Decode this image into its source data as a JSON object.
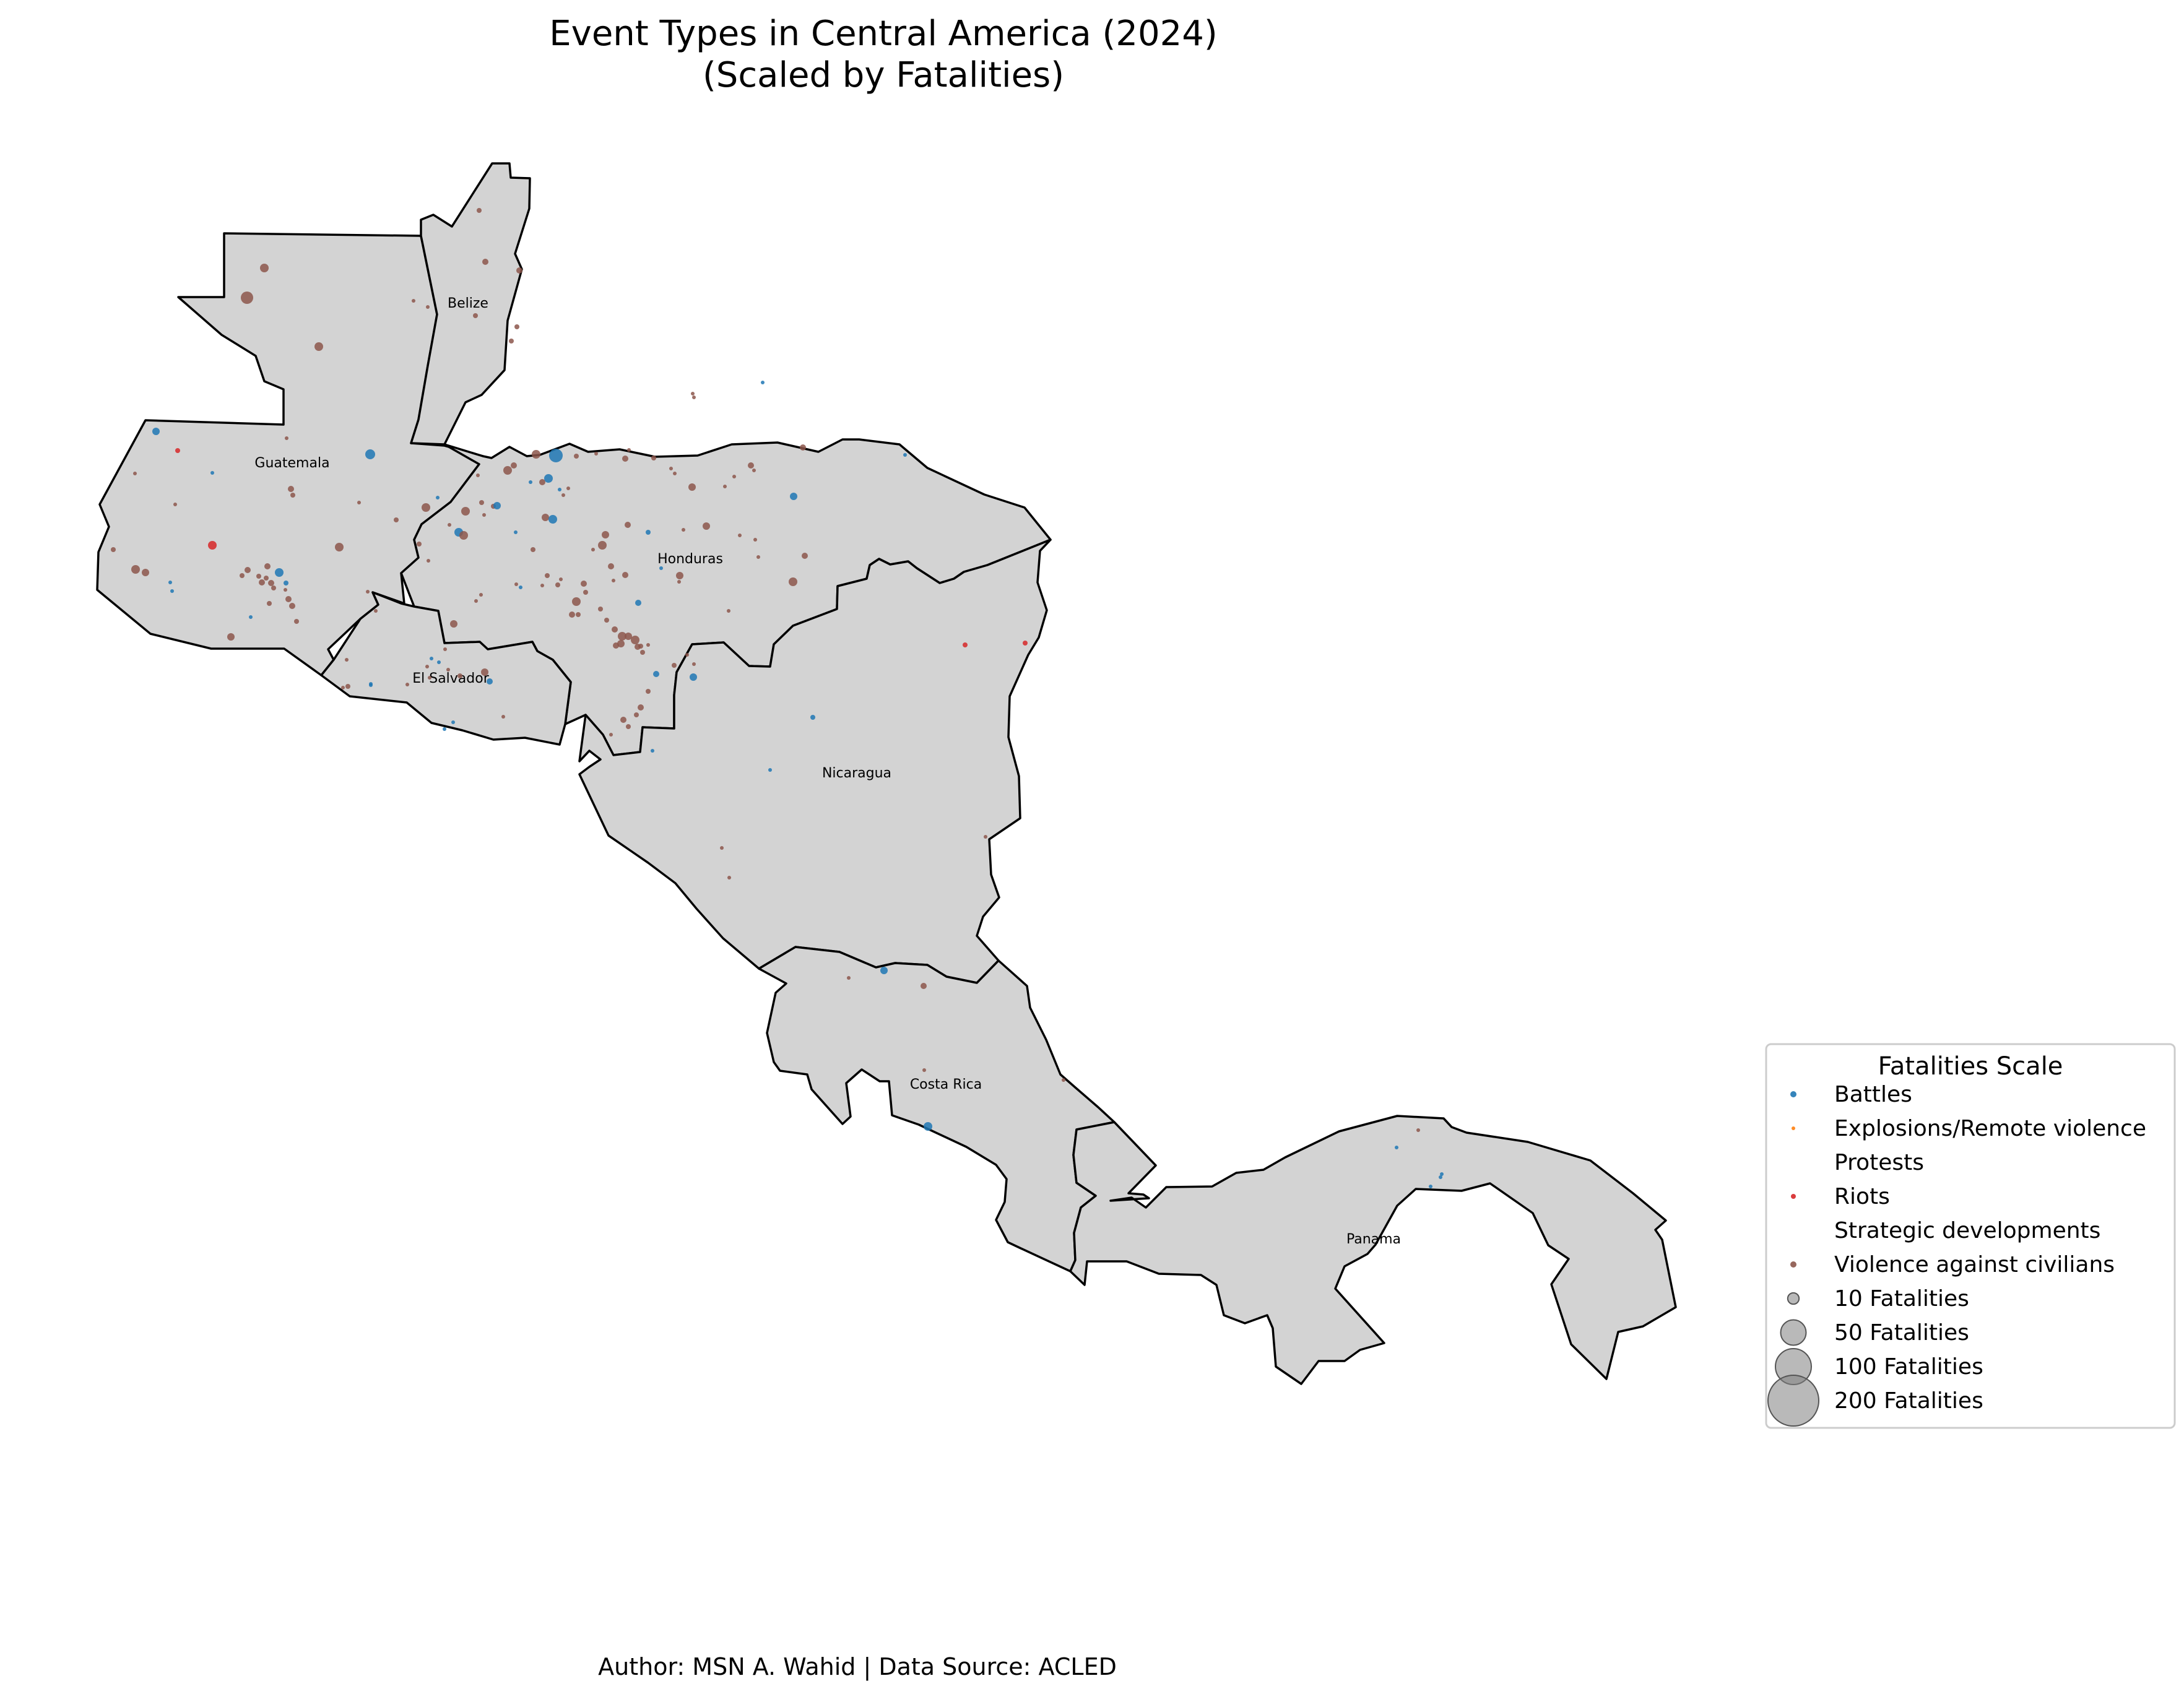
{
  "title_line1": "Event Types in Central America (2024)",
  "title_line2": "(Scaled by Fatalities)",
  "credit": "Author: MSN A. Wahid | Data Source: ACLED",
  "colors": {
    "land": "#d3d3d3",
    "border": "#000000",
    "Battles": "#1f77b4",
    "Explosions/Remote violence": "#ff7f0e",
    "Protests": "#2ca02c",
    "Riots": "#d62728",
    "Strategic developments": "#9467bd",
    "Violence against civilians": "#8c564b",
    "size_marker": "#808080"
  },
  "countries": [
    {
      "name": "Guatemala",
      "label": "Guatemala"
    },
    {
      "name": "Belize",
      "label": "Belize"
    },
    {
      "name": "Honduras",
      "label": "Honduras"
    },
    {
      "name": "El Salvador",
      "label": "El Salvador"
    },
    {
      "name": "Nicaragua",
      "label": "Nicaragua"
    },
    {
      "name": "Costa Rica",
      "label": "Costa Rica"
    },
    {
      "name": "Panama",
      "label": "Panama"
    }
  ],
  "legend": {
    "title": "Fatalities Scale",
    "event_types": [
      "Battles",
      "Explosions/Remote violence",
      "Protests",
      "Riots",
      "Strategic developments",
      "Violence against civilians"
    ],
    "size_entries": [
      {
        "label": "10 Fatalities",
        "value": 10
      },
      {
        "label": "50 Fatalities",
        "value": 50
      },
      {
        "label": "100 Fatalities",
        "value": 100
      },
      {
        "label": "200 Fatalities",
        "value": 200
      }
    ]
  }
}
